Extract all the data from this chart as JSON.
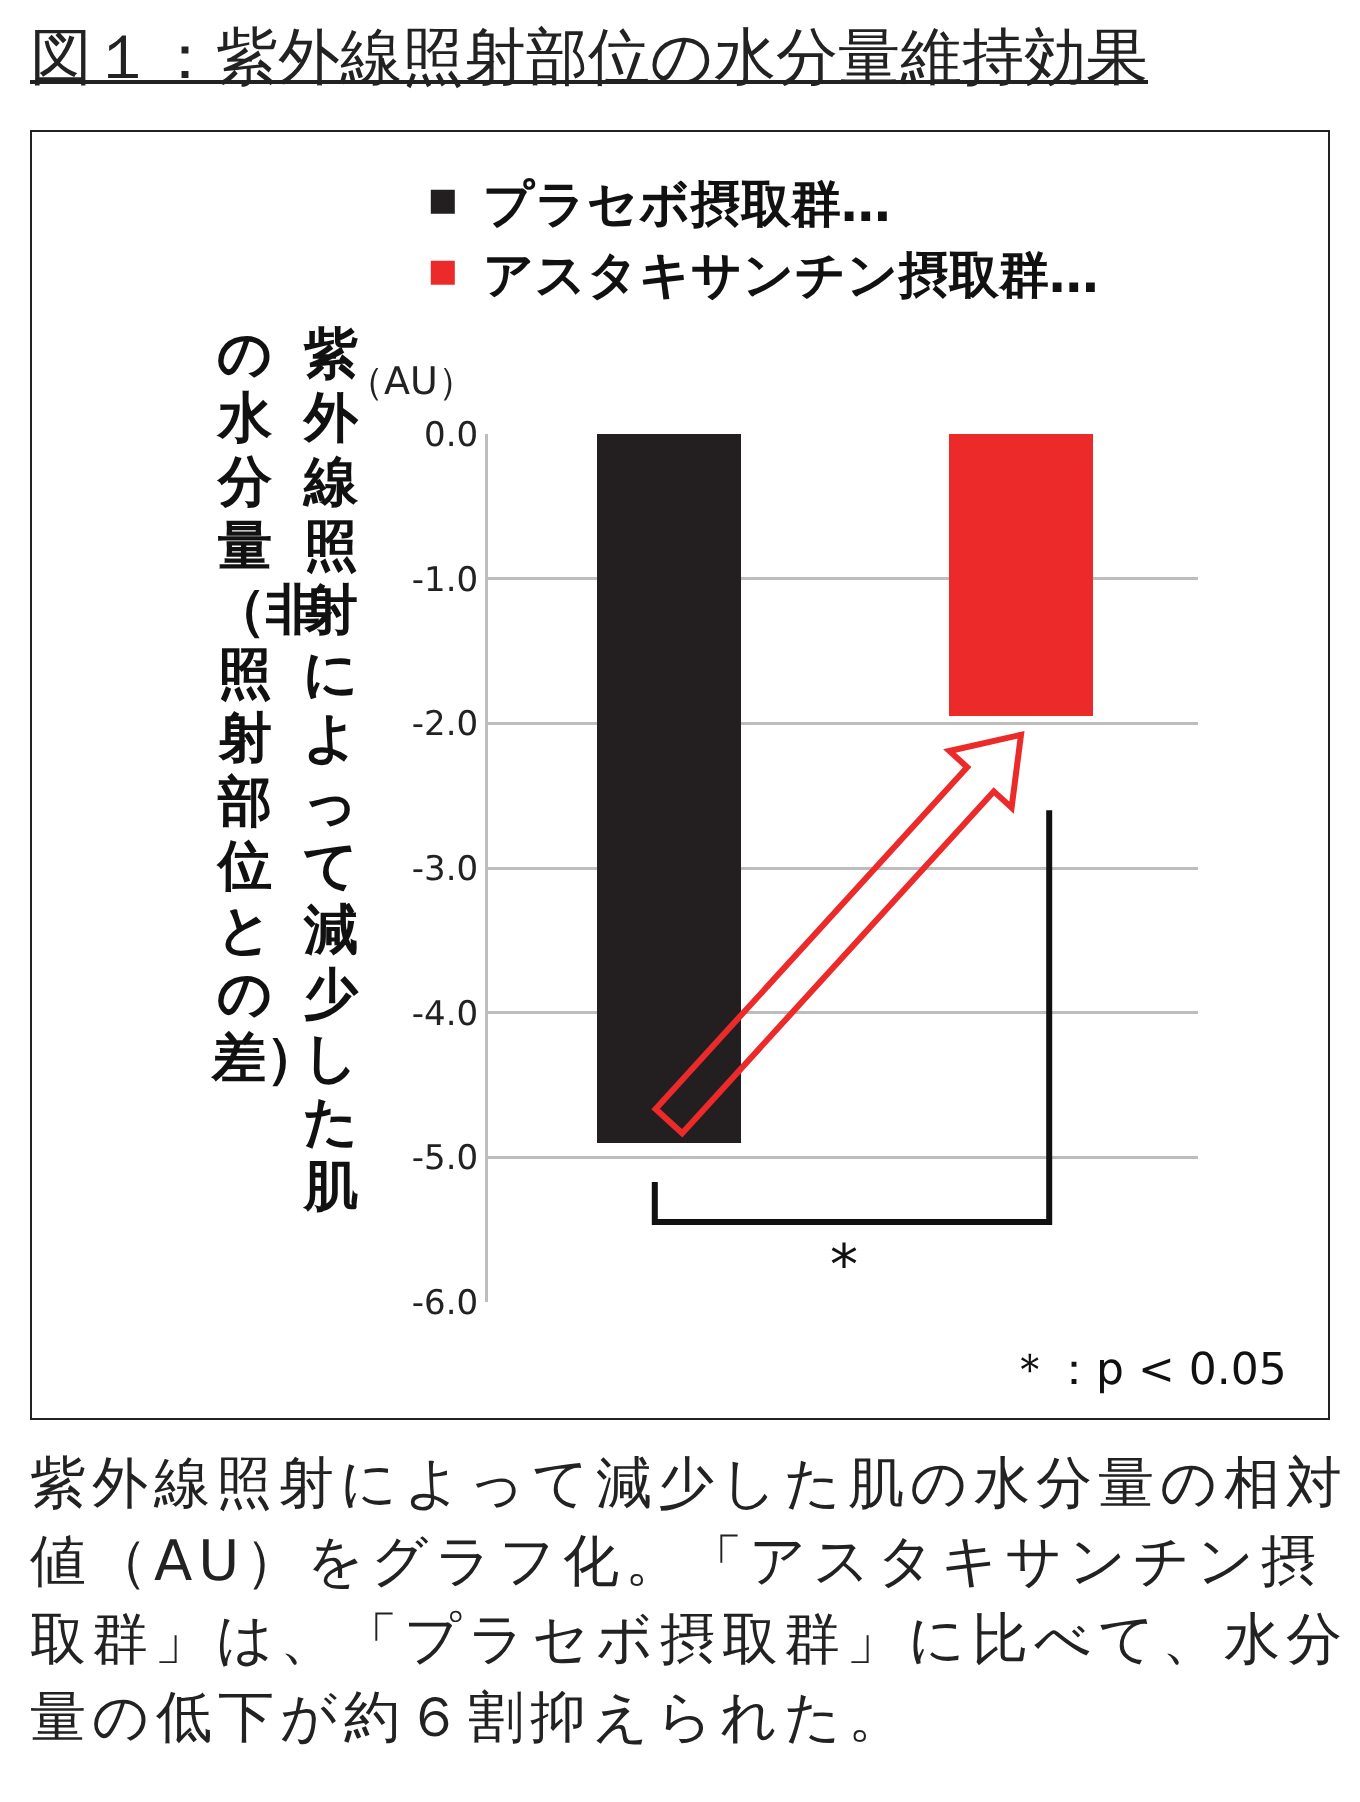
{
  "chart_data": {
    "type": "bar",
    "title": "図１：紫外線照射部位の水分量維持効果",
    "ylabel": "紫外線照射によって減少した肌の水分量（非照射部位との差）",
    "categories": [
      null,
      null
    ],
    "series": [
      {
        "name": "プラセボ摂取群…",
        "color": "#231f20",
        "values": [
          -4.9,
          null
        ]
      },
      {
        "name": "アスタキサンチン摂取群…",
        "color": "#ec2a2a",
        "values": [
          null,
          -1.95
        ]
      }
    ],
    "ylim": [
      -6,
      0
    ],
    "yticks": [
      {
        "value": 0,
        "label": "0.0"
      },
      {
        "value": -1,
        "label": "-1.0"
      },
      {
        "value": -2,
        "label": "-2.0"
      },
      {
        "value": -3,
        "label": "-3.0"
      },
      {
        "value": -4,
        "label": "-4.0"
      },
      {
        "value": -5,
        "label": "-5.0"
      },
      {
        "value": -6,
        "label": "-6.0"
      }
    ],
    "grid": "y",
    "legend": "top",
    "annotations": [
      "（AU）",
      "*",
      "＊：p < 0.05",
      "紫外線照射によって減少した肌の水分量の相対値（AU）をグラフ化。「アスタキサンチン摂取群」は、「プラセボ摂取群」に比べて、水分量の低下が約６割抑えられた。"
    ]
  }
}
